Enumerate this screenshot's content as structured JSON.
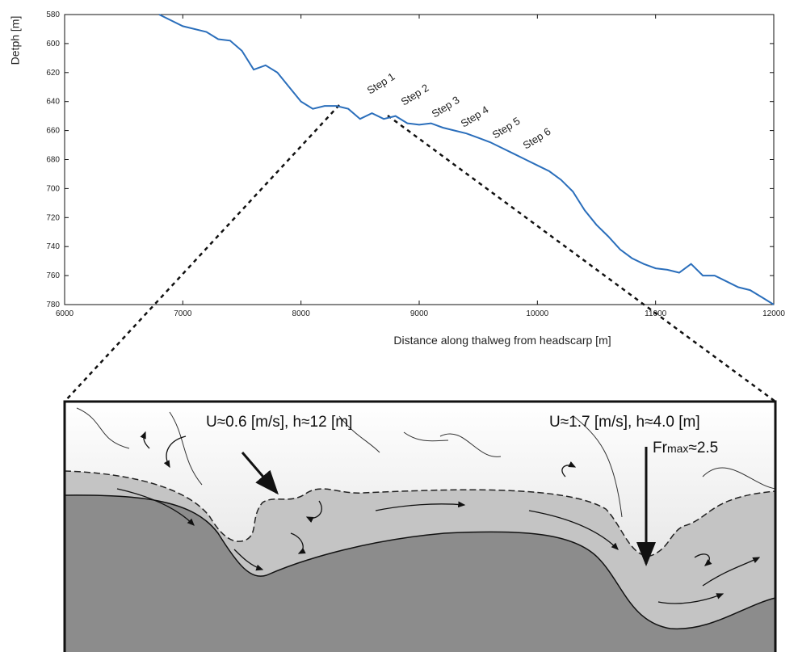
{
  "chart_data": {
    "type": "line",
    "y_label": "Detph [m]",
    "x_label": "Distance along thalweg from headscarp [m]",
    "xlim": [
      6000,
      12000
    ],
    "xticks": [
      6000,
      7000,
      8000,
      9000,
      10000,
      11000,
      12000
    ],
    "ylim": [
      580,
      780
    ],
    "yticks": [
      580,
      600,
      620,
      640,
      660,
      680,
      700,
      720,
      740,
      760,
      780
    ],
    "y_inverted": true,
    "series": [
      {
        "color": "#2a6ebb",
        "x": [
          6800,
          7000,
          7200,
          7300,
          7400,
          7500,
          7600,
          7700,
          7800,
          7900,
          8000,
          8100,
          8200,
          8300,
          8400,
          8500,
          8600,
          8700,
          8800,
          8900,
          9000,
          9100,
          9200,
          9300,
          9400,
          9500,
          9600,
          9700,
          9800,
          9900,
          10000,
          10100,
          10200,
          10300,
          10400,
          10500,
          10600,
          10700,
          10800,
          10900,
          11000,
          11100,
          11200,
          11300,
          11400,
          11500,
          11600,
          11700,
          11800,
          11900,
          12000
        ],
        "values": [
          580,
          588,
          592,
          597,
          598,
          605,
          618,
          615,
          620,
          630,
          640,
          645,
          643,
          643,
          645,
          652,
          648,
          652,
          650,
          655,
          656,
          655,
          658,
          660,
          662,
          665,
          668,
          672,
          676,
          680,
          684,
          688,
          694,
          702,
          715,
          725,
          733,
          742,
          748,
          752,
          755,
          756,
          758,
          752,
          760,
          760,
          764,
          768,
          770,
          775,
          780
        ]
      }
    ],
    "annotations": [
      "Step 1",
      "Step 2",
      "Step 3",
      "Step 4",
      "Step 5",
      "Step 6"
    ]
  },
  "diagram": {
    "left_label": "U≈0.6 [m/s], h≈12 [m]",
    "right_label": "U≈1.7 [m/s], h≈4.0 [m]",
    "froude": {
      "symbol": "Fr",
      "subscript": "max",
      "value": "≈2.5"
    }
  }
}
